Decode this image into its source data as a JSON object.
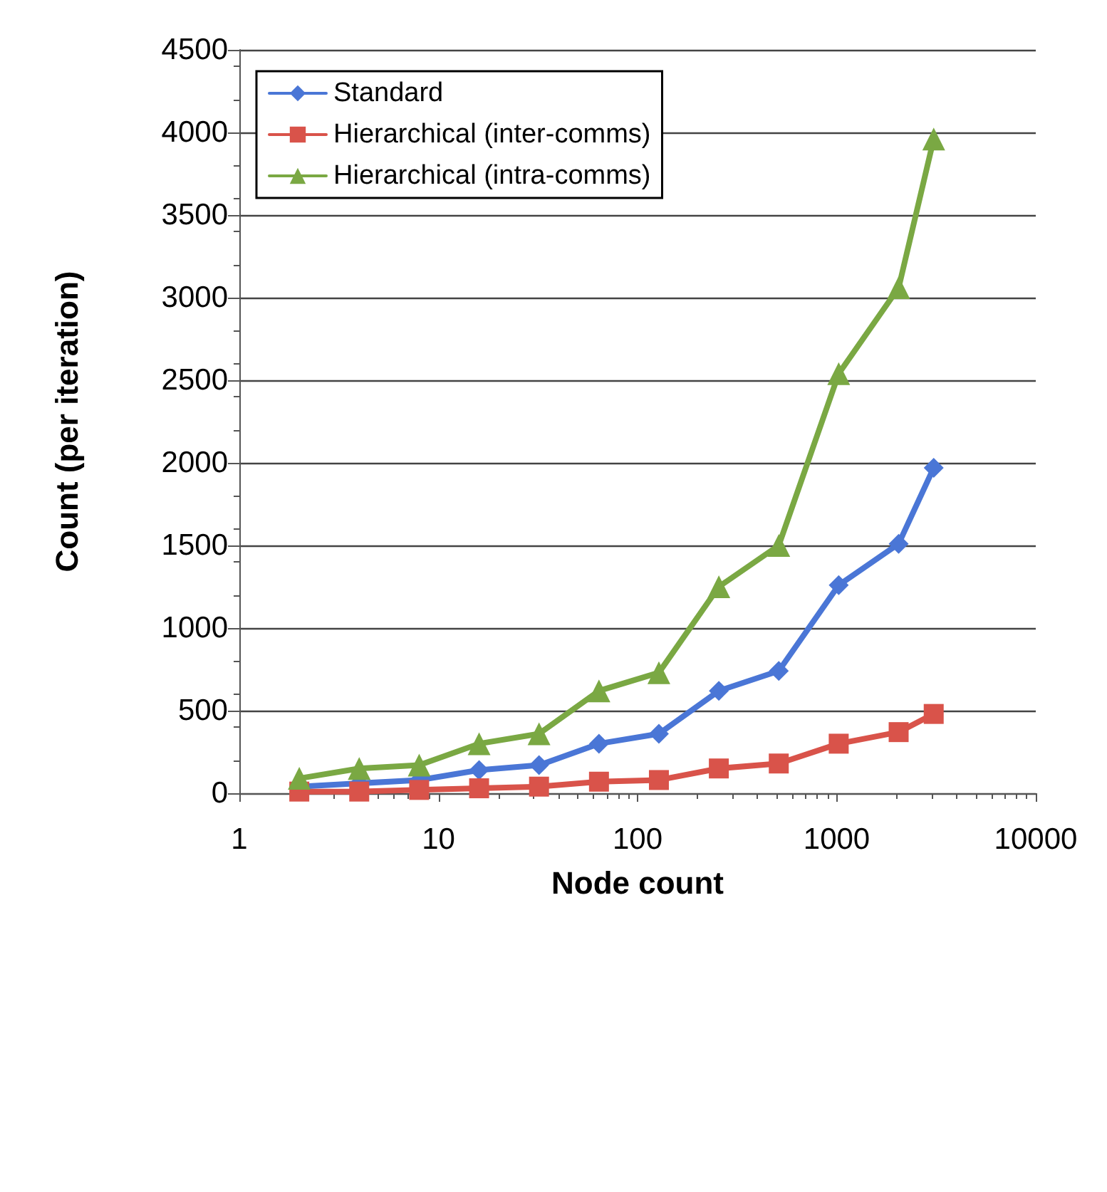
{
  "chart_data": {
    "type": "line",
    "xlabel": "Node count",
    "ylabel": "Count (per iteration)",
    "x": [
      2,
      4,
      8,
      16,
      32,
      64,
      128,
      256,
      512,
      1024,
      2048,
      3072
    ],
    "series": [
      {
        "name": "Standard",
        "color": "#4a76d6",
        "marker": "diamond",
        "values": [
          40,
          60,
          80,
          140,
          170,
          300,
          360,
          620,
          740,
          1260,
          1510,
          1970
        ]
      },
      {
        "name": "Hierarchical (inter-comms)",
        "color": "#d9534a",
        "marker": "square",
        "values": [
          10,
          10,
          20,
          30,
          40,
          70,
          80,
          150,
          180,
          300,
          370,
          480
        ]
      },
      {
        "name": "Hierarchical (intra-comms)",
        "color": "#7aa843",
        "marker": "triangle",
        "values": [
          90,
          150,
          170,
          300,
          360,
          620,
          730,
          1250,
          1500,
          2540,
          3060,
          3960
        ]
      }
    ],
    "log": "x",
    "xlim": [
      1,
      10000
    ],
    "xticks": [
      1,
      10,
      100,
      1000,
      10000
    ],
    "ylim": [
      0,
      4500
    ],
    "yticks": [
      0,
      500,
      1000,
      1500,
      2000,
      2500,
      3000,
      3500,
      4000,
      4500
    ],
    "grid": "y",
    "legend": "top left",
    "line_style": "solid"
  }
}
